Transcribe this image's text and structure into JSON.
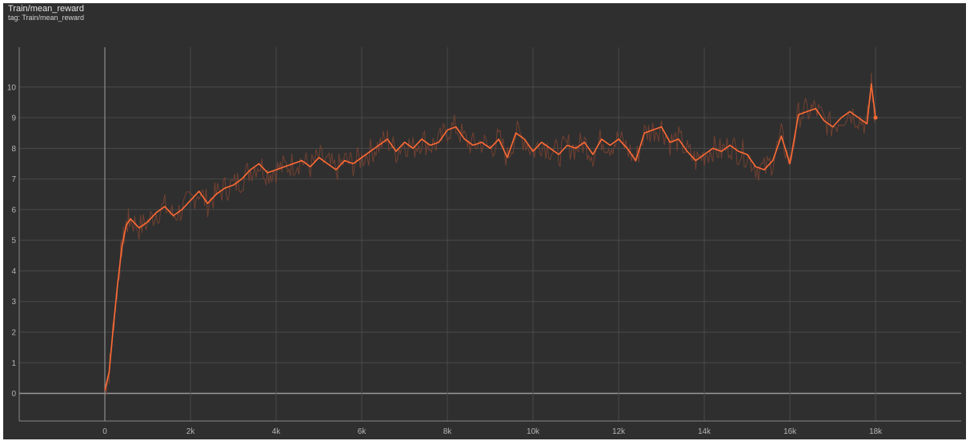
{
  "header": {
    "title": "Train/mean_reward",
    "tag_line": "tag: Train/mean_reward"
  },
  "colors": {
    "background": "#2f2f2f",
    "grid": "#4a4a4a",
    "axis": "#8a8a8a",
    "raw_line": "#7a4332",
    "smoothed_line": "#ff6b35"
  },
  "chart_data": {
    "type": "line",
    "title": "Train/mean_reward",
    "xlabel": "",
    "ylabel": "",
    "xlim": [
      -2000,
      20000
    ],
    "ylim": [
      -0.9,
      11.3
    ],
    "grid": true,
    "x_ticks": [
      {
        "value": 0,
        "label": "0"
      },
      {
        "value": 2000,
        "label": "2k"
      },
      {
        "value": 4000,
        "label": "4k"
      },
      {
        "value": 6000,
        "label": "6k"
      },
      {
        "value": 8000,
        "label": "8k"
      },
      {
        "value": 10000,
        "label": "10k"
      },
      {
        "value": 12000,
        "label": "12k"
      },
      {
        "value": 14000,
        "label": "14k"
      },
      {
        "value": 16000,
        "label": "16k"
      },
      {
        "value": 18000,
        "label": "18k"
      }
    ],
    "y_ticks": [
      {
        "value": 0,
        "label": "0"
      },
      {
        "value": 1,
        "label": "1"
      },
      {
        "value": 2,
        "label": "2"
      },
      {
        "value": 3,
        "label": "3"
      },
      {
        "value": 4,
        "label": "4"
      },
      {
        "value": 5,
        "label": "5"
      },
      {
        "value": 6,
        "label": "6"
      },
      {
        "value": 7,
        "label": "7"
      },
      {
        "value": 8,
        "label": "8"
      },
      {
        "value": 9,
        "label": "9"
      },
      {
        "value": 10,
        "label": "10"
      }
    ],
    "series": [
      {
        "x": [
          0,
          100,
          200,
          300,
          400,
          500,
          600,
          800,
          1000,
          1200,
          1400,
          1600,
          1800,
          2000,
          2200,
          2400,
          2600,
          2800,
          3000,
          3200,
          3400,
          3600,
          3800,
          4000,
          4200,
          4400,
          4600,
          4800,
          5000,
          5200,
          5400,
          5600,
          5800,
          6000,
          6200,
          6400,
          6600,
          6800,
          7000,
          7200,
          7400,
          7600,
          7800,
          8000,
          8200,
          8400,
          8600,
          8800,
          9000,
          9200,
          9400,
          9600,
          9800,
          10000,
          10200,
          10400,
          10600,
          10800,
          11000,
          11200,
          11400,
          11600,
          11800,
          12000,
          12200,
          12400,
          12600,
          12800,
          13000,
          13200,
          13400,
          13600,
          13800,
          14000,
          14200,
          14400,
          14600,
          14800,
          15000,
          15200,
          15400,
          15600,
          15800,
          16000,
          16200,
          16400,
          16600,
          16800,
          17000,
          17200,
          17400,
          17600,
          17800,
          17900,
          18000
        ],
        "values": [
          0.1,
          0.7,
          2.2,
          3.6,
          4.8,
          5.5,
          5.7,
          5.4,
          5.6,
          5.9,
          6.1,
          5.8,
          6.0,
          6.3,
          6.6,
          6.2,
          6.5,
          6.7,
          6.8,
          7.0,
          7.3,
          7.5,
          7.2,
          7.3,
          7.4,
          7.5,
          7.6,
          7.4,
          7.7,
          7.5,
          7.3,
          7.6,
          7.5,
          7.7,
          7.9,
          8.1,
          8.3,
          7.9,
          8.2,
          8.0,
          8.3,
          8.1,
          8.2,
          8.6,
          8.7,
          8.3,
          8.1,
          8.2,
          8.0,
          8.3,
          7.7,
          8.5,
          8.3,
          7.9,
          8.2,
          8.0,
          7.8,
          8.1,
          8.0,
          8.2,
          7.8,
          8.3,
          8.1,
          8.3,
          8.0,
          7.6,
          8.5,
          8.6,
          8.7,
          8.2,
          8.3,
          7.9,
          7.6,
          7.8,
          8.0,
          7.9,
          8.1,
          7.9,
          7.8,
          7.4,
          7.3,
          7.6,
          8.4,
          7.5,
          9.1,
          9.2,
          9.3,
          8.9,
          8.7,
          9.0,
          9.2,
          9.0,
          8.8,
          10.1,
          9.0
        ]
      }
    ]
  }
}
